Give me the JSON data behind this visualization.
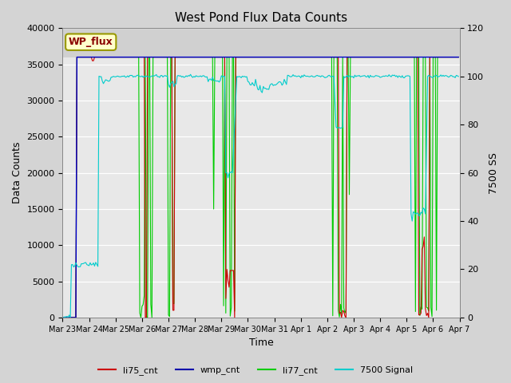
{
  "title": "West Pond Flux Data Counts",
  "ylabel_left": "Data Counts",
  "ylabel_right": "7500 SS",
  "xlabel": "Time",
  "legend_label": "WP_flux",
  "ylim_left": [
    0,
    40000
  ],
  "ylim_right": [
    0,
    120
  ],
  "fig_bg_color": "#d4d4d4",
  "plot_bg_color": "#e8e8e8",
  "above_band_color": "#d0d0d0",
  "series_colors": {
    "li75_cnt": "#cc0000",
    "wmp_cnt": "#0000cc",
    "li77_cnt": "#00cc00",
    "7500": "#00cccc"
  },
  "legend_entries": [
    {
      "label": "li75_cnt",
      "color": "#cc0000"
    },
    {
      "label": "wmp_cnt",
      "color": "#0000aa"
    },
    {
      "label": "li77_cnt",
      "color": "#00cc00"
    },
    {
      "label": "7500 Signal",
      "color": "#00cccc"
    }
  ],
  "xtick_labels": [
    "Mar 23",
    "Mar 24",
    "Mar 25",
    "Mar 26",
    "Mar 27",
    "Mar 28",
    "Mar 29",
    "Mar 30",
    "Mar 31",
    "Apr 1",
    "Apr 2",
    "Apr 3",
    "Apr 4",
    "Apr 5",
    "Apr 6",
    "Apr 7"
  ],
  "yticks_left": [
    0,
    5000,
    10000,
    15000,
    20000,
    25000,
    30000,
    35000,
    40000
  ],
  "yticks_right": [
    0,
    20,
    40,
    60,
    80,
    100,
    120
  ]
}
